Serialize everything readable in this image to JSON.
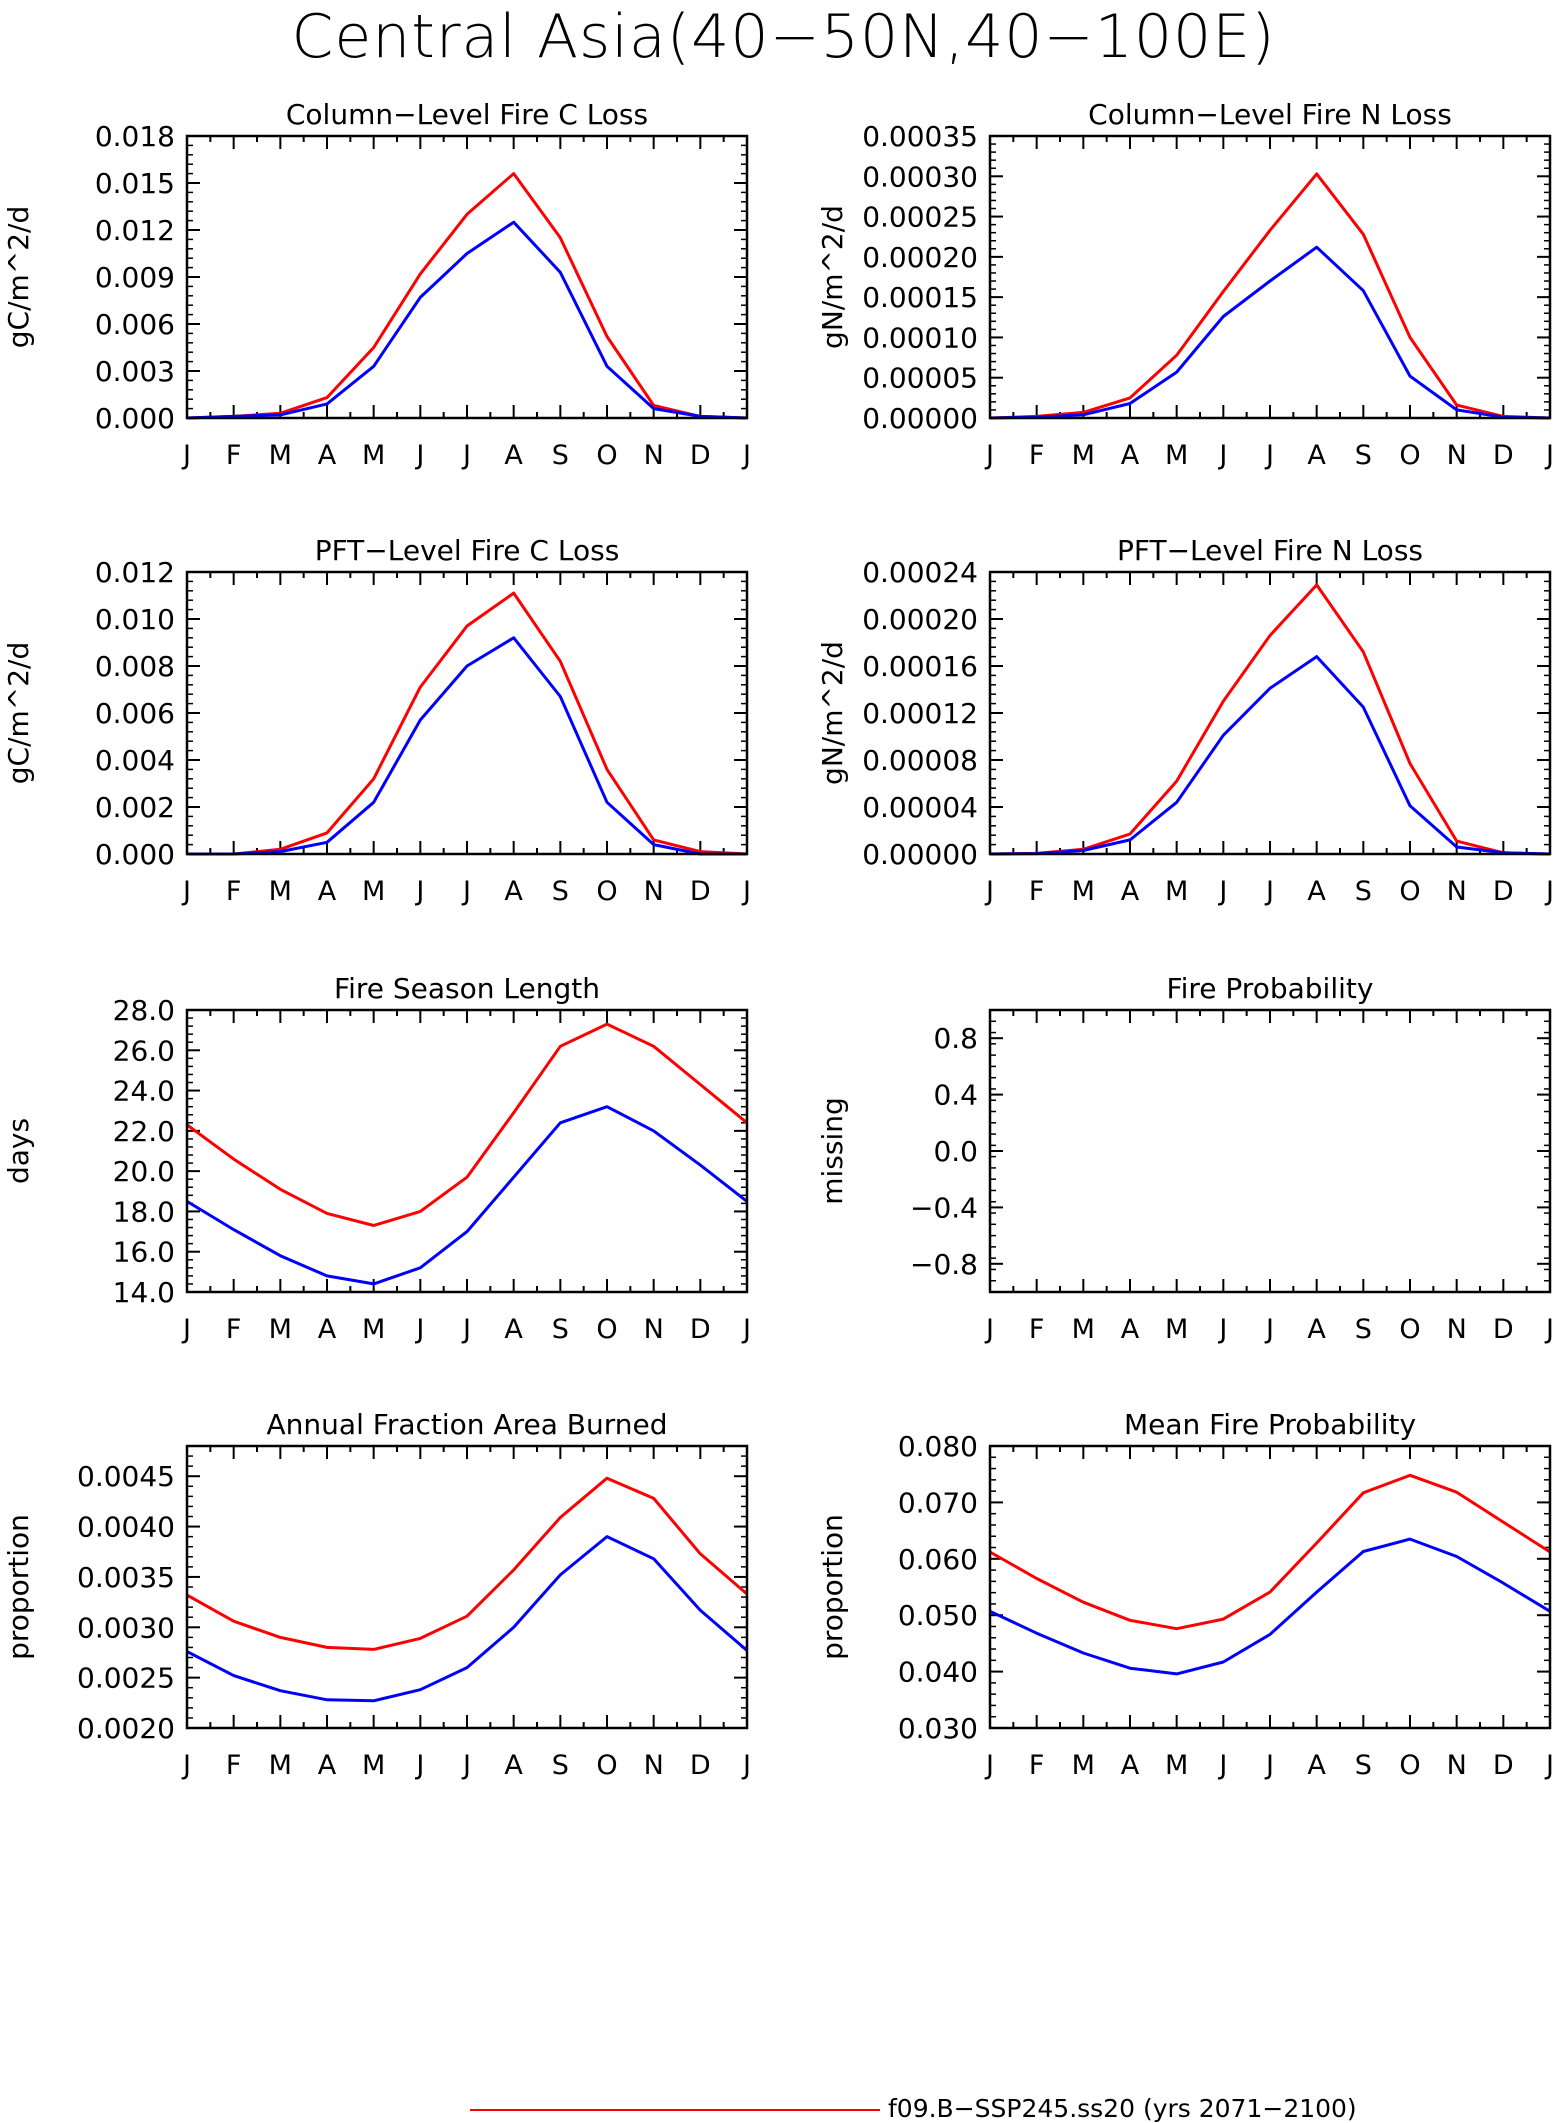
{
  "figure": {
    "title": "Central Asia(40−50N,40−100E)",
    "legend": {
      "series_name": "f09.B−SSP245.ss20 (yrs 2071−2100)",
      "line_color": "#ff0000"
    }
  },
  "chart_data": [
    {
      "type": "line",
      "title": "Column−Level Fire C Loss",
      "ylabel": "gC/m^2/d",
      "categories": [
        "J",
        "F",
        "M",
        "A",
        "M",
        "J",
        "J",
        "A",
        "S",
        "O",
        "N",
        "D",
        "J"
      ],
      "ylim": [
        0,
        0.018
      ],
      "yticks": [
        "0.000",
        "0.003",
        "0.006",
        "0.009",
        "0.012",
        "0.015",
        "0.018"
      ],
      "series": [
        {
          "color": "#ff0000",
          "values": [
            0.0,
            0.0001,
            0.0003,
            0.0013,
            0.0045,
            0.0092,
            0.013,
            0.0156,
            0.0115,
            0.0052,
            0.0008,
            0.0001,
            0.0
          ]
        },
        {
          "color": "#0000ff",
          "values": [
            0.0,
            0.0001,
            0.0002,
            0.0009,
            0.0033,
            0.0077,
            0.0105,
            0.0125,
            0.0093,
            0.0033,
            0.0006,
            0.0001,
            0.0
          ]
        }
      ]
    },
    {
      "type": "line",
      "title": "Column−Level Fire N Loss",
      "ylabel": "gN/m^2/d",
      "categories": [
        "J",
        "F",
        "M",
        "A",
        "M",
        "J",
        "J",
        "A",
        "S",
        "O",
        "N",
        "D",
        "J"
      ],
      "ylim": [
        0,
        0.00035
      ],
      "yticks": [
        "0.00000",
        "0.00005",
        "0.00010",
        "0.00015",
        "0.00020",
        "0.00025",
        "0.00030",
        "0.00035"
      ],
      "series": [
        {
          "color": "#ff0000",
          "values": [
            0.0,
            2e-06,
            7e-06,
            2.5e-05,
            7.8e-05,
            0.000157,
            0.000233,
            0.000303,
            0.000228,
            0.0001,
            1.6e-05,
            2e-06,
            0.0
          ]
        },
        {
          "color": "#0000ff",
          "values": [
            0.0,
            1e-06,
            4e-06,
            1.8e-05,
            5.7e-05,
            0.000126,
            0.00017,
            0.000212,
            0.000158,
            5.2e-05,
            1e-05,
            1e-06,
            0.0
          ]
        }
      ]
    },
    {
      "type": "line",
      "title": "PFT−Level Fire C Loss",
      "ylabel": "gC/m^2/d",
      "categories": [
        "J",
        "F",
        "M",
        "A",
        "M",
        "J",
        "J",
        "A",
        "S",
        "O",
        "N",
        "D",
        "J"
      ],
      "ylim": [
        0,
        0.012
      ],
      "yticks": [
        "0.000",
        "0.002",
        "0.004",
        "0.006",
        "0.008",
        "0.010",
        "0.012"
      ],
      "series": [
        {
          "color": "#ff0000",
          "values": [
            0.0,
            0.0,
            0.0002,
            0.0009,
            0.0032,
            0.0071,
            0.0097,
            0.0111,
            0.0082,
            0.0036,
            0.0006,
            0.0001,
            0.0
          ]
        },
        {
          "color": "#0000ff",
          "values": [
            0.0,
            0.0,
            0.0001,
            0.0005,
            0.0022,
            0.0057,
            0.008,
            0.0092,
            0.0067,
            0.0022,
            0.0004,
            0.0,
            0.0
          ]
        }
      ]
    },
    {
      "type": "line",
      "title": "PFT−Level Fire N Loss",
      "ylabel": "gN/m^2/d",
      "categories": [
        "J",
        "F",
        "M",
        "A",
        "M",
        "J",
        "J",
        "A",
        "S",
        "O",
        "N",
        "D",
        "J"
      ],
      "ylim": [
        0,
        0.00024
      ],
      "yticks": [
        "0.00000",
        "0.00004",
        "0.00008",
        "0.00012",
        "0.00016",
        "0.00020",
        "0.00024"
      ],
      "series": [
        {
          "color": "#ff0000",
          "values": [
            0.0,
            5e-07,
            4e-06,
            1.7e-05,
            6.2e-05,
            0.00013,
            0.000186,
            0.000229,
            0.000172,
            7.7e-05,
            1.1e-05,
            1e-06,
            0.0
          ]
        },
        {
          "color": "#0000ff",
          "values": [
            0.0,
            3e-07,
            3e-06,
            1.2e-05,
            4.4e-05,
            0.000101,
            0.000141,
            0.000168,
            0.000125,
            4.1e-05,
            6e-06,
            1e-06,
            0.0
          ]
        }
      ]
    },
    {
      "type": "line",
      "title": "Fire Season Length",
      "ylabel": "days",
      "categories": [
        "J",
        "F",
        "M",
        "A",
        "M",
        "J",
        "J",
        "A",
        "S",
        "O",
        "N",
        "D",
        "J"
      ],
      "ylim": [
        14,
        28
      ],
      "yticks": [
        "14.0",
        "16.0",
        "18.0",
        "20.0",
        "22.0",
        "24.0",
        "26.0",
        "28.0"
      ],
      "series": [
        {
          "color": "#ff0000",
          "values": [
            22.3,
            20.6,
            19.1,
            17.9,
            17.3,
            18.0,
            19.7,
            22.9,
            26.2,
            27.3,
            26.2,
            24.3,
            22.4
          ]
        },
        {
          "color": "#0000ff",
          "values": [
            18.5,
            17.1,
            15.8,
            14.8,
            14.4,
            15.2,
            17.0,
            19.7,
            22.4,
            23.2,
            22.0,
            20.3,
            18.5
          ]
        }
      ]
    },
    {
      "type": "line",
      "title": "Fire Probability",
      "ylabel": "missing",
      "categories": [
        "J",
        "F",
        "M",
        "A",
        "M",
        "J",
        "J",
        "A",
        "S",
        "O",
        "N",
        "D",
        "J"
      ],
      "ylim": [
        -1,
        1
      ],
      "yticks": [
        "−0.8",
        "−0.4",
        "0.0",
        "0.4",
        "0.8"
      ],
      "series": []
    },
    {
      "type": "line",
      "title": "Annual Fraction Area Burned",
      "ylabel": "proportion",
      "categories": [
        "J",
        "F",
        "M",
        "A",
        "M",
        "J",
        "J",
        "A",
        "S",
        "O",
        "N",
        "D",
        "J"
      ],
      "ylim": [
        0.002,
        0.0048
      ],
      "yticks": [
        "0.0020",
        "0.0025",
        "0.0030",
        "0.0035",
        "0.0040",
        "0.0045"
      ],
      "series": [
        {
          "color": "#ff0000",
          "values": [
            0.00332,
            0.00306,
            0.0029,
            0.0028,
            0.00278,
            0.00289,
            0.00311,
            0.00357,
            0.00409,
            0.00448,
            0.00428,
            0.00373,
            0.00333
          ]
        },
        {
          "color": "#0000ff",
          "values": [
            0.00276,
            0.00252,
            0.00237,
            0.00228,
            0.00227,
            0.00238,
            0.0026,
            0.003,
            0.00352,
            0.0039,
            0.00368,
            0.00317,
            0.00277
          ]
        }
      ]
    },
    {
      "type": "line",
      "title": "Mean Fire Probability",
      "ylabel": "proportion",
      "categories": [
        "J",
        "F",
        "M",
        "A",
        "M",
        "J",
        "J",
        "A",
        "S",
        "O",
        "N",
        "D",
        "J"
      ],
      "ylim": [
        0.03,
        0.08
      ],
      "yticks": [
        "0.030",
        "0.040",
        "0.050",
        "0.060",
        "0.070",
        "0.080"
      ],
      "series": [
        {
          "color": "#ff0000",
          "values": [
            0.0612,
            0.0565,
            0.0523,
            0.0491,
            0.0476,
            0.0493,
            0.0541,
            0.0628,
            0.0717,
            0.0748,
            0.0718,
            0.0665,
            0.0612
          ]
        },
        {
          "color": "#0000ff",
          "values": [
            0.0507,
            0.0468,
            0.0433,
            0.0406,
            0.0396,
            0.0417,
            0.0466,
            0.0541,
            0.0613,
            0.0635,
            0.0604,
            0.0557,
            0.0507
          ]
        }
      ]
    }
  ]
}
